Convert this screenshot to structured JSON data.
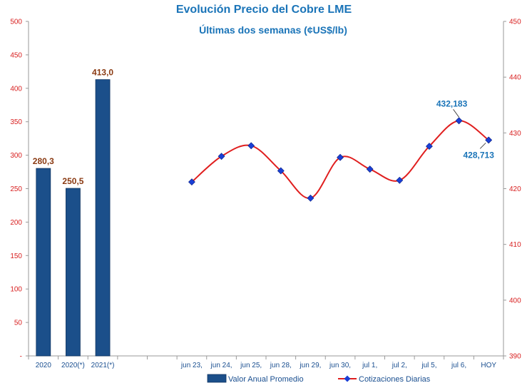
{
  "chart_data": {
    "type": "bar+line",
    "title": "Evolución Precio del Cobre LME",
    "subtitle": "Últimas dos semanas (¢US$/lb)",
    "left_axis": {
      "ylim": [
        0,
        500
      ],
      "ticks": [
        "-",
        "50",
        "100",
        "150",
        "200",
        "250",
        "300",
        "350",
        "400",
        "450",
        "500"
      ]
    },
    "right_axis": {
      "ylim": [
        390,
        450
      ],
      "ticks": [
        "390",
        "400",
        "410",
        "420",
        "430",
        "440",
        "450"
      ]
    },
    "bar_series": {
      "name": "Valor Anual Promedio",
      "color": "#1b4f8a",
      "categories": [
        "2020",
        "2020(*)",
        "2021(*)"
      ],
      "values": [
        280.3,
        250.5,
        413.0
      ],
      "labels": [
        "280,3",
        "250,5",
        "413,0"
      ]
    },
    "line_series": {
      "name": "Cotizaciones Diarias",
      "line_color": "#e01e1e",
      "marker_color": "#1a3fd6",
      "categories": [
        "jun 23,",
        "jun 24,",
        "jun 25,",
        "jun 28,",
        "jun 29,",
        "jun 30,",
        "jul 1,",
        "jul 2,",
        "jul 5,",
        "jul 6,",
        "HOY"
      ],
      "values": [
        421.2,
        425.8,
        427.7,
        423.2,
        418.3,
        425.6,
        423.5,
        421.5,
        427.6,
        432.183,
        428.713
      ],
      "labels": [
        {
          "index": 9,
          "text": "432,183"
        },
        {
          "index": 10,
          "text": "428,713"
        }
      ]
    }
  }
}
